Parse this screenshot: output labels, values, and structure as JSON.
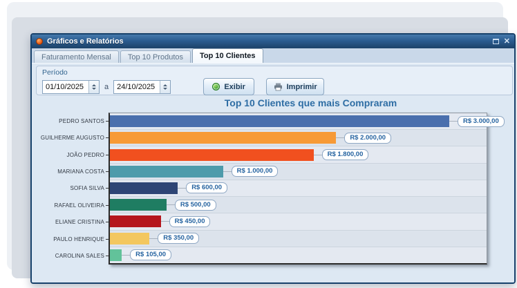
{
  "window": {
    "title": "Gráficos e Relatórios",
    "close_glyph": "✕"
  },
  "tabs": [
    {
      "label": "Faturamento Mensal",
      "active": false
    },
    {
      "label": "Top 10 Produtos",
      "active": false
    },
    {
      "label": "Top 10 Clientes",
      "active": true
    }
  ],
  "toolbar": {
    "group_label": "Período",
    "date_from": "01/10/2025",
    "separator": "a",
    "date_to": "24/10/2025",
    "exibir_label": "Exibir",
    "imprimir_label": "Imprimir"
  },
  "chart_data": {
    "type": "bar",
    "orientation": "horizontal",
    "title": "Top 10 Clientes que mais Compraram",
    "categories": [
      "PEDRO SANTOS",
      "GUILHERME AUGUSTO",
      "JOÃO PEDRO",
      "MARIANA COSTA",
      "SOFIA SILVA",
      "RAFAEL OLIVEIRA",
      "ELIANE CRISTINA",
      "PAULO HENRIQUE",
      "CAROLINA SALES"
    ],
    "values": [
      3000,
      2000,
      1800,
      1000,
      600,
      500,
      450,
      350,
      105
    ],
    "value_labels": [
      "R$ 3.000,00",
      "R$ 2.000,00",
      "R$ 1.800,00",
      "R$ 1.000,00",
      "R$ 600,00",
      "R$ 500,00",
      "R$ 450,00",
      "R$ 350,00",
      "R$ 105,00"
    ],
    "bar_colors": [
      "#4a6fad",
      "#f79a36",
      "#f1501f",
      "#4d9bab",
      "#2e4575",
      "#1f7d62",
      "#b5161d",
      "#f3c75f",
      "#62c29a"
    ],
    "xlabel": "",
    "ylabel": "",
    "xlim": [
      0,
      3330
    ],
    "legend": "none",
    "grid": "horizontal row separators with alternating striped background"
  },
  "colors": {
    "titlebar_top": "#457aab",
    "titlebar_bottom": "#1c4268",
    "window_border": "#17416b",
    "accent_text": "#2e6da4",
    "tabpage_bg": "#dde8f3"
  }
}
